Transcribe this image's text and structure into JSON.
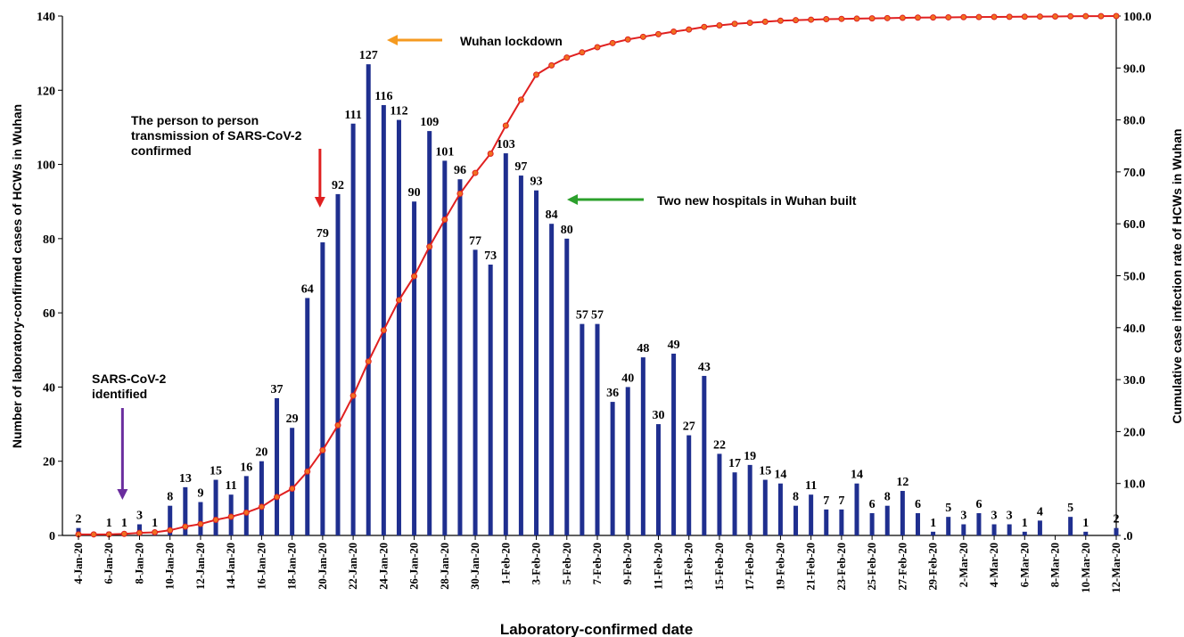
{
  "chart_data": {
    "type": "bar+line",
    "xlabel": "Laboratory-confirmed date",
    "ylabel": "Number of  laboratory-confirmed cases of HCWs in Wuhan",
    "y2label": "Cumulative case infection rate of HCWs in Wuhan",
    "ylim": [
      0,
      140
    ],
    "y2lim": [
      0,
      100
    ],
    "yticks": [
      "0",
      "20",
      "40",
      "60",
      "80",
      "100",
      "120",
      "140"
    ],
    "y2ticks": [
      ".0",
      "10.0",
      "20.0",
      "30.0",
      "40.0",
      "50.0",
      "60.0",
      "70.0",
      "80.0",
      "90.0",
      "100.0"
    ],
    "x": [
      "4-Jan-20",
      "5-Jan-20",
      "6-Jan-20",
      "7-Jan-20",
      "8-Jan-20",
      "9-Jan-20",
      "10-Jan-20",
      "11-Jan-20",
      "12-Jan-20",
      "13-Jan-20",
      "14-Jan-20",
      "15-Jan-20",
      "16-Jan-20",
      "17-Jan-20",
      "18-Jan-20",
      "19-Jan-20",
      "20-Jan-20",
      "21-Jan-20",
      "22-Jan-20",
      "23-Jan-20",
      "24-Jan-20",
      "25-Jan-20",
      "26-Jan-20",
      "27-Jan-20",
      "28-Jan-20",
      "29-Jan-20",
      "30-Jan-20",
      "31-Jan-20",
      "1-Feb-20",
      "2-Feb-20",
      "3-Feb-20",
      "4-Feb-20",
      "5-Feb-20",
      "6-Feb-20",
      "7-Feb-20",
      "8-Feb-20",
      "9-Feb-20",
      "10-Feb-20",
      "11-Feb-20",
      "12-Feb-20",
      "13-Feb-20",
      "14-Feb-20",
      "15-Feb-20",
      "16-Feb-20",
      "17-Feb-20",
      "18-Feb-20",
      "19-Feb-20",
      "20-Feb-20",
      "21-Feb-20",
      "22-Feb-20",
      "23-Feb-20",
      "24-Feb-20",
      "25-Feb-20",
      "26-Feb-20",
      "27-Feb-20",
      "28-Feb-20",
      "29-Feb-20",
      "1-Mar-20",
      "2-Mar-20",
      "3-Mar-20",
      "4-Mar-20",
      "5-Mar-20",
      "6-Mar-20",
      "7-Mar-20",
      "8-Mar-20",
      "9-Mar-20",
      "10-Mar-20",
      "11-Mar-20",
      "12-Mar-20"
    ],
    "xtick_labels": [
      "4-Jan-20",
      "6-Jan-20",
      "8-Jan-20",
      "10-Jan-20",
      "12-Jan-20",
      "14-Jan-20",
      "16-Jan-20",
      "18-Jan-20",
      "20-Jan-20",
      "22-Jan-20",
      "24-Jan-20",
      "26-Jan-20",
      "28-Jan-20",
      "30-Jan-20",
      "1-Feb-20",
      "3-Feb-20",
      "5-Feb-20",
      "7-Feb-20",
      "9-Feb-20",
      "11-Feb-20",
      "13-Feb-20",
      "15-Feb-20",
      "17-Feb-20",
      "19-Feb-20",
      "21-Feb-20",
      "23-Feb-20",
      "25-Feb-20",
      "27-Feb-20",
      "29-Feb-20",
      "2-Mar-20",
      "4-Mar-20",
      "6-Mar-20",
      "8-Mar-20",
      "10-Mar-20",
      "12-Mar-20"
    ],
    "bars": {
      "color": "#1f2f8f",
      "values": [
        2,
        0,
        1,
        1,
        3,
        1,
        8,
        13,
        9,
        15,
        11,
        16,
        20,
        37,
        29,
        64,
        79,
        92,
        111,
        127,
        116,
        112,
        90,
        109,
        101,
        96,
        77,
        73,
        103,
        97,
        93,
        84,
        80,
        57,
        57,
        36,
        40,
        48,
        30,
        49,
        27,
        43,
        22,
        17,
        19,
        15,
        14,
        8,
        11,
        7,
        7,
        14,
        6,
        8,
        12,
        6,
        1,
        5,
        3,
        6,
        3,
        3,
        1,
        4,
        0,
        5,
        1,
        0,
        2
      ],
      "labels": [
        "2",
        "",
        "1",
        "1",
        "3",
        "1",
        "8",
        "13",
        "9",
        "15",
        "11",
        "16",
        "20",
        "37",
        "29",
        "64",
        "79",
        "92",
        "111",
        "127",
        "116",
        "112",
        "90",
        "109",
        "101",
        "96",
        "77",
        "73",
        "103",
        "97",
        "93",
        "84",
        "80",
        "57",
        "57",
        "36",
        "40",
        "48",
        "30",
        "49",
        "27",
        "43",
        "22",
        "17",
        "19",
        "15",
        "14",
        "8",
        "11",
        "7",
        "7",
        "14",
        "6",
        "8",
        "12",
        "6",
        "1",
        "5",
        "3",
        "6",
        "3",
        "3",
        "1",
        "4",
        "",
        "5",
        "1",
        "",
        "2"
      ]
    },
    "line": {
      "color": "#e02020",
      "marker_color": "#f07020",
      "values": [
        0.2,
        0.2,
        0.2,
        0.3,
        0.5,
        0.6,
        1.0,
        1.7,
        2.2,
        3.0,
        3.6,
        4.4,
        5.5,
        7.4,
        9.0,
        12.3,
        16.4,
        21.2,
        26.9,
        33.5,
        39.5,
        45.3,
        49.9,
        55.6,
        60.8,
        65.8,
        69.8,
        73.5,
        78.9,
        83.9,
        88.7,
        90.5,
        92.0,
        93.0,
        94.0,
        94.8,
        95.5,
        96.0,
        96.5,
        97.0,
        97.4,
        97.9,
        98.2,
        98.5,
        98.7,
        98.9,
        99.1,
        99.2,
        99.3,
        99.4,
        99.45,
        99.5,
        99.55,
        99.6,
        99.65,
        99.7,
        99.72,
        99.75,
        99.78,
        99.8,
        99.83,
        99.85,
        99.87,
        99.9,
        99.92,
        99.95,
        99.97,
        99.98,
        100.0
      ]
    },
    "annotations": [
      {
        "lines": [
          "SARS-CoV-2",
          "identified"
        ],
        "arrow_color": "#6a2d9e",
        "x_date": "7-Jan-20",
        "arrow": "down"
      },
      {
        "lines": [
          "The person to person",
          "transmission of SARS-CoV-2",
          "confirmed"
        ],
        "arrow_color": "#e02020",
        "x_date": "20-Jan-20",
        "arrow": "down"
      },
      {
        "lines": [
          "Wuhan lockdown"
        ],
        "arrow_color": "#f59a20",
        "x_date": "23-Jan-20",
        "arrow": "left"
      },
      {
        "lines": [
          "Two new hospitals in Wuhan built"
        ],
        "arrow_color": "#2ca02c",
        "x_date": "5-Feb-20",
        "arrow": "left"
      }
    ]
  }
}
